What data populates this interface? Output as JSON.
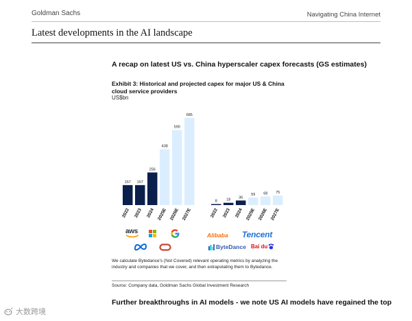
{
  "header": {
    "brand": "Goldman Sachs",
    "section": "Navigating China Internet"
  },
  "page_title": "Latest developments in the AI landscape",
  "recap_heading": "A recap on latest US vs. China hyperscaler capex forecasts (GS estimates)",
  "exhibit": {
    "title": "Exhibit 3: Historical and projected capex for major US & China cloud service providers",
    "units": "US$bn"
  },
  "chart_data": [
    {
      "type": "bar",
      "group": "US",
      "categories": [
        "2022",
        "2023",
        "2024",
        "2025E",
        "2026E",
        "2027E"
      ],
      "values": [
        157,
        157,
        256,
        438,
        590,
        685
      ],
      "bar_colors": [
        "#0b1f4d",
        "#0b1f4d",
        "#0b1f4d",
        "#dbeeff",
        "#dbeeff",
        "#dbeeff"
      ],
      "title": "",
      "xlabel": "",
      "ylabel": "",
      "ylim": [
        0,
        700
      ],
      "grid": false,
      "legend": "none",
      "logos": [
        "aws",
        "microsoft",
        "google",
        "meta",
        "oracle"
      ]
    },
    {
      "type": "bar",
      "group": "China",
      "categories": [
        "2022",
        "2023",
        "2024",
        "2025E",
        "2026E",
        "2027E"
      ],
      "values": [
        8,
        18,
        36,
        59,
        68,
        75
      ],
      "bar_colors": [
        "#0b1f4d",
        "#0b1f4d",
        "#0b1f4d",
        "#dbeeff",
        "#dbeeff",
        "#dbeeff"
      ],
      "title": "",
      "xlabel": "",
      "ylabel": "",
      "ylim": [
        0,
        700
      ],
      "grid": false,
      "legend": "none",
      "logos": [
        "Alibaba",
        "Tencent",
        "ByteDance",
        "Baidu"
      ]
    }
  ],
  "logos": {
    "us": {
      "aws": "aws",
      "microsoft_icon": "microsoft-squares-icon",
      "google_icon": "google-g-icon",
      "meta_icon": "meta-infinity-icon",
      "oracle_icon": "oracle-ring-icon"
    },
    "china": {
      "alibaba": "Alibaba",
      "tencent": "Tencent",
      "bytedance": "ByteDance",
      "baidu": "Bai du"
    }
  },
  "note": "We calculate Bytedance's (Not Covered) relevant operating metrics by analyzing the industry and companies that we cover, and then extrapolating them to Bytedance.",
  "source": "Source: Company data, Goldman Sachs Global Investment Research",
  "further_heading": "Further breakthroughs in AI models - we note US AI models have regained the top",
  "watermark": "大数跨境",
  "colors": {
    "dark_bar": "#0b1f4d",
    "light_bar": "#dbeeff",
    "alibaba_orange": "#ff6a00",
    "tencent_blue": "#1d74d9",
    "bytedance_blue": "#325ab4",
    "baidu_red": "#de0f17"
  }
}
